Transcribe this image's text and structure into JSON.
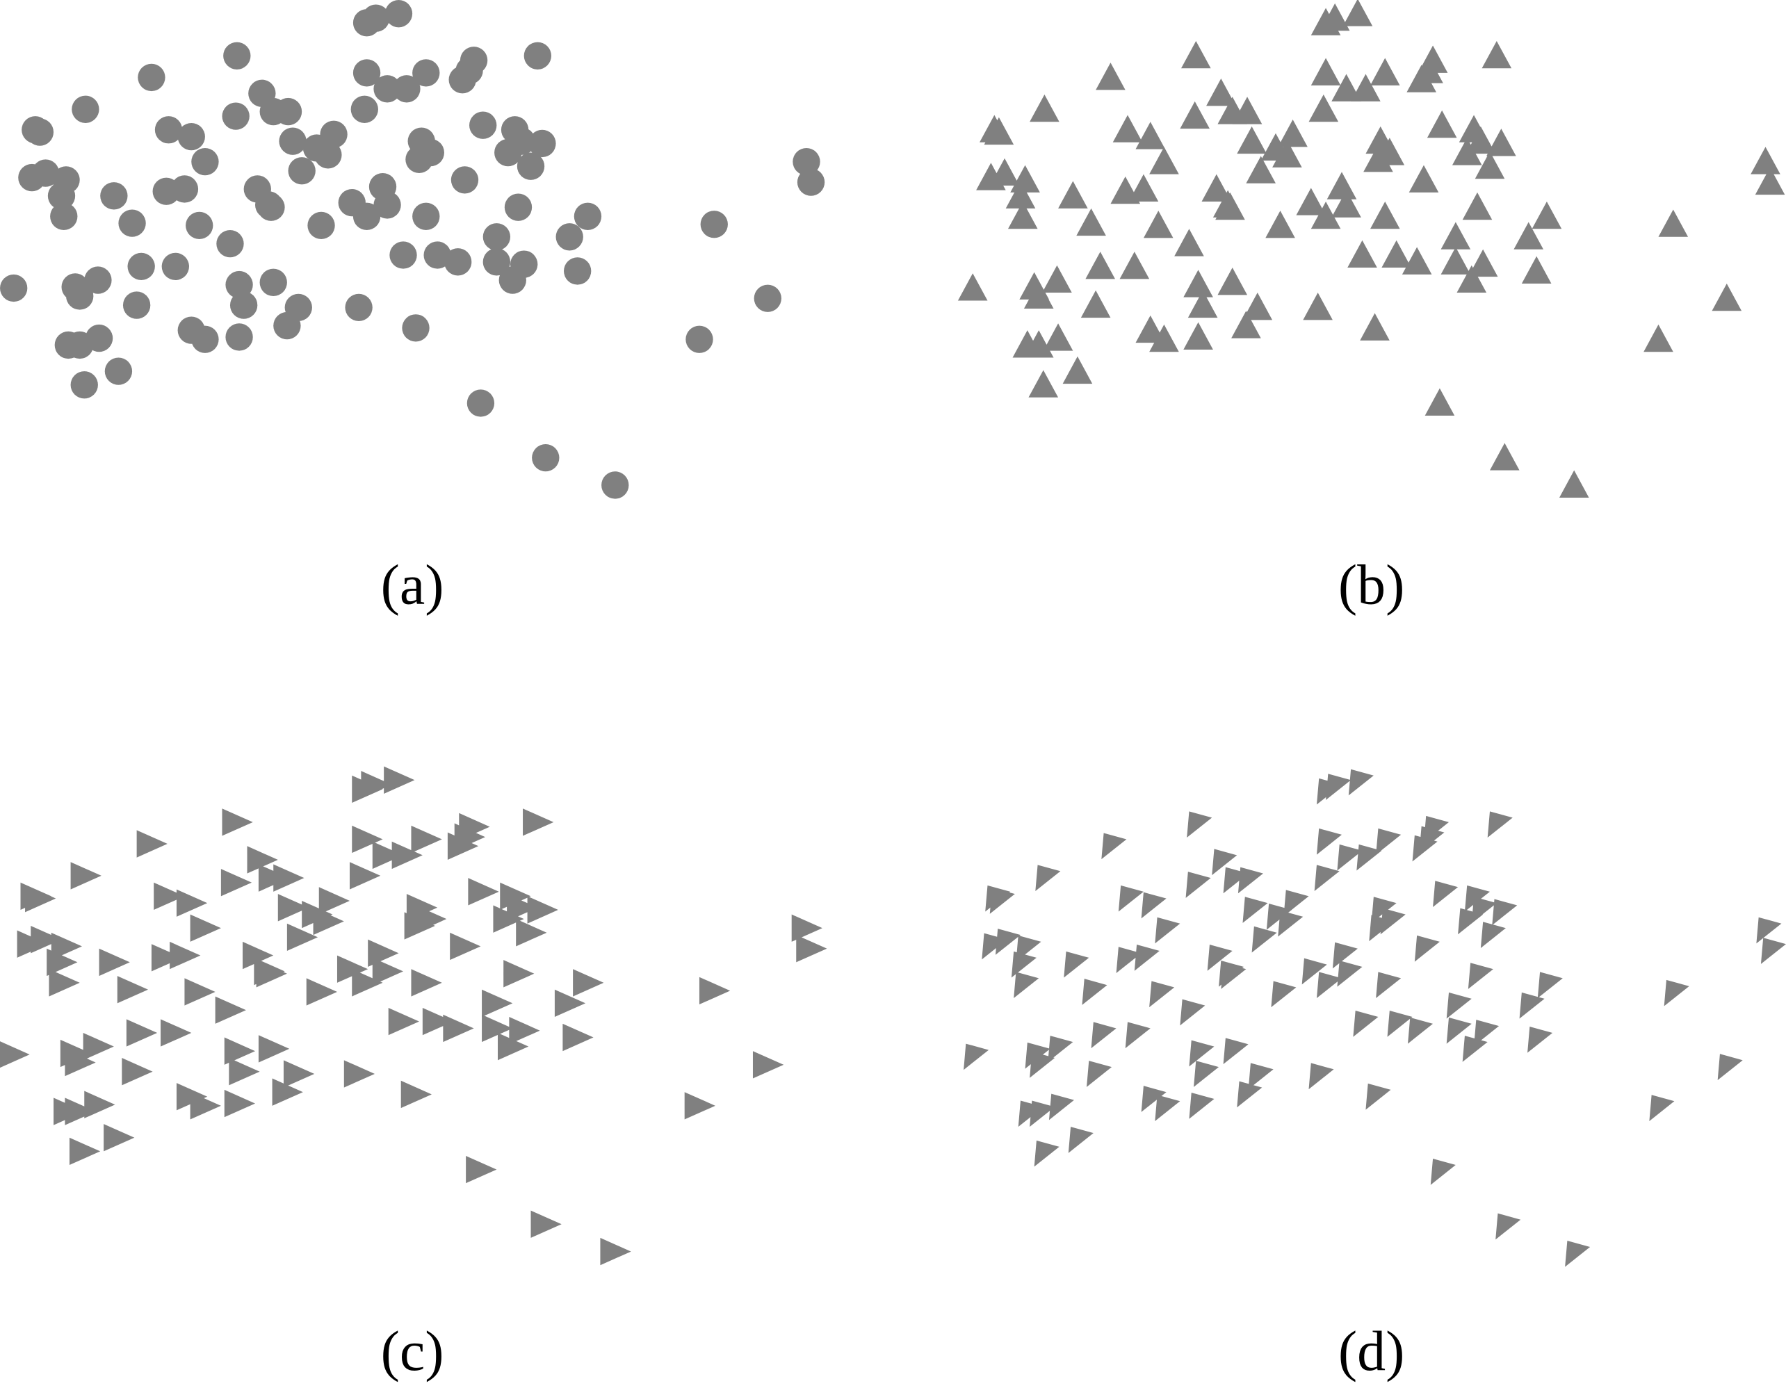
{
  "chart_data": [
    {
      "type": "scatter",
      "panel_label": "(a)",
      "marker": "circle",
      "color": "#808080"
    },
    {
      "type": "scatter",
      "panel_label": "(b)",
      "marker": "triangle-up",
      "color": "#808080"
    },
    {
      "type": "scatter",
      "panel_label": "(c)",
      "marker": "triangle-right",
      "color": "#808080"
    },
    {
      "type": "scatter",
      "panel_label": "(d)",
      "marker": "triangle-rotated",
      "color": "#808080"
    }
  ],
  "shared_points": {
    "x": [
      32.2,
      33.0,
      35.0,
      20.8,
      47.2,
      13.3,
      32.2,
      34.0,
      35.7,
      37.4,
      40.6,
      41.6,
      41.2,
      7.5,
      3.1,
      3.5,
      23.0,
      20.7,
      24.0,
      25.3,
      32.0,
      14.8,
      16.8,
      25.7,
      29.3,
      27.8,
      28.8,
      26.5,
      37.0,
      36.8,
      37.8,
      42.4,
      45.2,
      47.6,
      44.6,
      46.6,
      45.8,
      18.0,
      2.8,
      4.0,
      5.8,
      5.4,
      5.6,
      10.0,
      11.6,
      14.6,
      16.2,
      22.6,
      23.8,
      23.6,
      30.9,
      32.2,
      33.6,
      34.0,
      40.8,
      45.5,
      51.6,
      50.0,
      70.8,
      71.2,
      62.7,
      17.5,
      20.2,
      28.2,
      37.4,
      43.6,
      1.2,
      6.6,
      7.0,
      8.6,
      12.4,
      15.4,
      21.0,
      24.0,
      21.4,
      35.4,
      38.4,
      40.2,
      43.6,
      45.0,
      46.0,
      50.7,
      12.0,
      26.2,
      31.5,
      25.2,
      16.8,
      18.0,
      21.0,
      36.5,
      6.0,
      7.0,
      8.7,
      7.4,
      10.4,
      67.4,
      61.4,
      42.2,
      47.9,
      54.0
    ],
    "y": [
      42.0,
      42.4,
      42.8,
      39.1,
      39.1,
      37.2,
      37.6,
      36.2,
      36.2,
      37.6,
      37.0,
      38.7,
      37.8,
      34.4,
      32.6,
      32.4,
      35.8,
      33.8,
      34.2,
      34.2,
      34.4,
      32.6,
      32.0,
      31.6,
      32.2,
      31.0,
      30.4,
      29.0,
      31.6,
      30.0,
      30.6,
      33.0,
      32.6,
      31.4,
      30.6,
      29.4,
      31.6,
      29.8,
      28.4,
      28.8,
      28.2,
      26.8,
      25.0,
      26.8,
      24.4,
      27.2,
      27.4,
      27.4,
      25.8,
      26.0,
      26.2,
      25.0,
      27.6,
      26.0,
      28.2,
      25.8,
      25.0,
      23.2,
      29.8,
      28.0,
      24.3,
      24.2,
      22.6,
      24.2,
      25.0,
      23.2,
      18.7,
      18.8,
      18.0,
      19.4,
      20.6,
      20.6,
      19.0,
      19.2,
      17.2,
      21.6,
      21.6,
      21.0,
      21.0,
      19.4,
      20.8,
      20.2,
      17.2,
      17.0,
      17.0,
      15.4,
      15.0,
      14.2,
      14.4,
      15.2,
      13.7,
      13.7,
      14.3,
      10.2,
      11.4,
      17.8,
      14.2,
      8.6,
      3.8,
      1.4
    ]
  }
}
